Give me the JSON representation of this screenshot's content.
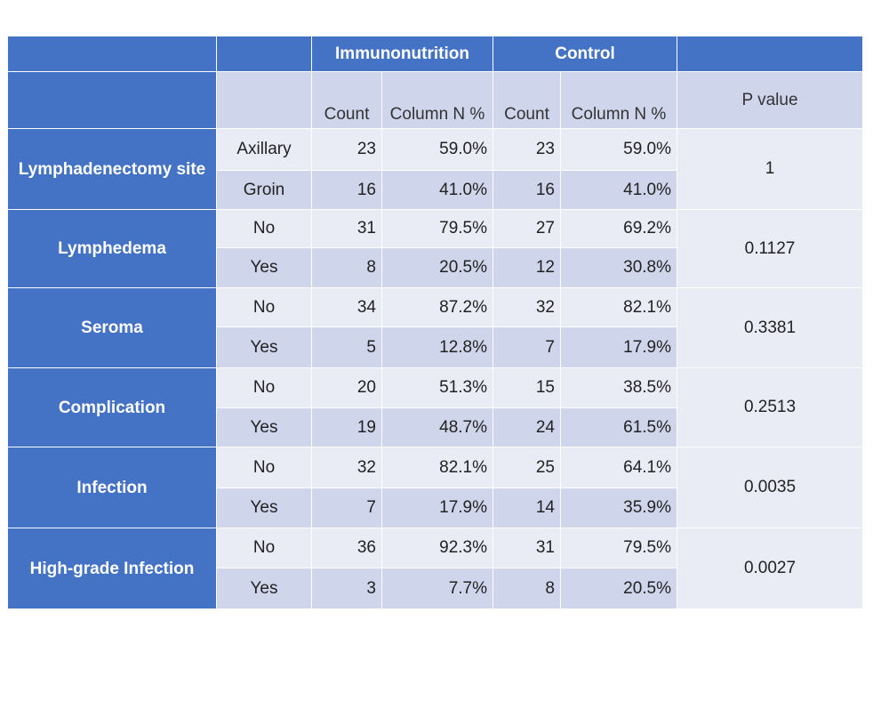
{
  "table": {
    "groups": [
      "Immunonutrition",
      "Control"
    ],
    "subheaders": [
      "Count",
      "Column N %",
      "Count",
      "Column N %"
    ],
    "p_header": "P value",
    "sections": [
      {
        "label": "Lymphadenectomy site",
        "p": "1",
        "rows": [
          {
            "level": "Axillary",
            "cells": [
              "23",
              "59.0%",
              "23",
              "59.0%"
            ]
          },
          {
            "level": "Groin",
            "cells": [
              "16",
              "41.0%",
              "16",
              "41.0%"
            ]
          }
        ]
      },
      {
        "label": "Lymphedema",
        "p": "0.1127",
        "rows": [
          {
            "level": "No",
            "cells": [
              "31",
              "79.5%",
              "27",
              "69.2%"
            ]
          },
          {
            "level": "Yes",
            "cells": [
              "8",
              "20.5%",
              "12",
              "30.8%"
            ]
          }
        ]
      },
      {
        "label": "Seroma",
        "p": "0.3381",
        "rows": [
          {
            "level": "No",
            "cells": [
              "34",
              "87.2%",
              "32",
              "82.1%"
            ]
          },
          {
            "level": "Yes",
            "cells": [
              "5",
              "12.8%",
              "7",
              "17.9%"
            ]
          }
        ]
      },
      {
        "label": "Complication",
        "p": "0.2513",
        "rows": [
          {
            "level": "No",
            "cells": [
              "20",
              "51.3%",
              "15",
              "38.5%"
            ]
          },
          {
            "level": "Yes",
            "cells": [
              "19",
              "48.7%",
              "24",
              "61.5%"
            ]
          }
        ]
      },
      {
        "label": "Infection",
        "p": "0.0035",
        "rows": [
          {
            "level": "No",
            "cells": [
              "32",
              "82.1%",
              "25",
              "64.1%"
            ]
          },
          {
            "level": "Yes",
            "cells": [
              "7",
              "17.9%",
              "14",
              "35.9%"
            ]
          }
        ]
      },
      {
        "label": "High-grade Infection",
        "p": "0.0027",
        "rows": [
          {
            "level": "No",
            "cells": [
              "36",
              "92.3%",
              "31",
              "79.5%"
            ]
          },
          {
            "level": "Yes",
            "cells": [
              "3",
              "7.7%",
              "8",
              "20.5%"
            ]
          }
        ]
      }
    ]
  },
  "chart_data": {
    "type": "table",
    "columns": [
      "Immunonutrition Count",
      "Immunonutrition Column N %",
      "Control Count",
      "Control Column N %",
      "P value"
    ],
    "rows": [
      {
        "variable": "Lymphadenectomy site",
        "level": "Axillary",
        "values": [
          23,
          59.0,
          23,
          59.0
        ],
        "p": 1
      },
      {
        "variable": "Lymphadenectomy site",
        "level": "Groin",
        "values": [
          16,
          41.0,
          16,
          41.0
        ],
        "p": 1
      },
      {
        "variable": "Lymphedema",
        "level": "No",
        "values": [
          31,
          79.5,
          27,
          69.2
        ],
        "p": 0.1127
      },
      {
        "variable": "Lymphedema",
        "level": "Yes",
        "values": [
          8,
          20.5,
          12,
          30.8
        ],
        "p": 0.1127
      },
      {
        "variable": "Seroma",
        "level": "No",
        "values": [
          34,
          87.2,
          32,
          82.1
        ],
        "p": 0.3381
      },
      {
        "variable": "Seroma",
        "level": "Yes",
        "values": [
          5,
          12.8,
          7,
          17.9
        ],
        "p": 0.3381
      },
      {
        "variable": "Complication",
        "level": "No",
        "values": [
          20,
          51.3,
          15,
          38.5
        ],
        "p": 0.2513
      },
      {
        "variable": "Complication",
        "level": "Yes",
        "values": [
          19,
          48.7,
          24,
          61.5
        ],
        "p": 0.2513
      },
      {
        "variable": "Infection",
        "level": "No",
        "values": [
          32,
          82.1,
          25,
          64.1
        ],
        "p": 0.0035
      },
      {
        "variable": "Infection",
        "level": "Yes",
        "values": [
          7,
          17.9,
          14,
          35.9
        ],
        "p": 0.0035
      },
      {
        "variable": "High-grade Infection",
        "level": "No",
        "values": [
          36,
          92.3,
          31,
          79.5
        ],
        "p": 0.0027
      },
      {
        "variable": "High-grade Infection",
        "level": "Yes",
        "values": [
          3,
          7.7,
          8,
          20.5
        ],
        "p": 0.0027
      }
    ]
  },
  "colors": {
    "header_blue": "#4472c4",
    "band_light": "#e9ebf5",
    "band_dark": "#cfd5ea"
  }
}
